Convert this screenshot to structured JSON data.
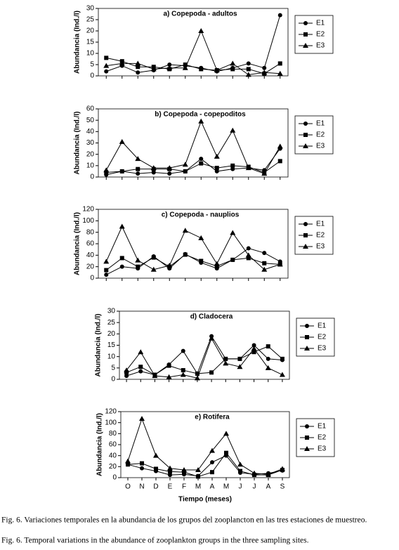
{
  "chart_data": [
    {
      "type": "line",
      "title": "a) Copepoda - adultos",
      "y_label": "Abundancia (Ind./l)",
      "ylim": [
        0,
        30
      ],
      "yticks": [
        0,
        5,
        10,
        15,
        20,
        25,
        30
      ],
      "series": [
        {
          "name": "E1",
          "color": "#000000",
          "marker": "circle",
          "values": [
            2,
            4.5,
            1.5,
            2.5,
            5,
            4.5,
            3.5,
            2,
            3.5,
            5.5,
            3.5,
            27
          ]
        },
        {
          "name": "E2",
          "color": "#000000",
          "marker": "square",
          "values": [
            8,
            6.5,
            4,
            4,
            3,
            5,
            3,
            2.5,
            3,
            3,
            1,
            5.5
          ]
        },
        {
          "name": "E3",
          "color": "#000000",
          "marker": "triangle",
          "values": [
            4.5,
            5.5,
            5.5,
            3,
            3.5,
            3.5,
            20,
            2.5,
            5.5,
            0.5,
            1.5,
            1
          ]
        }
      ]
    },
    {
      "type": "line",
      "title": "b) Copepoda - copepoditos",
      "y_label": "Abundancia (Ind./l)",
      "ylim": [
        0,
        60
      ],
      "yticks": [
        0,
        10,
        20,
        30,
        40,
        50,
        60
      ],
      "series": [
        {
          "name": "E1",
          "color": "#000000",
          "marker": "circle",
          "values": [
            2,
            5,
            3,
            4,
            3,
            5,
            16,
            5,
            7,
            8,
            6,
            25
          ]
        },
        {
          "name": "E2",
          "color": "#000000",
          "marker": "square",
          "values": [
            4,
            5,
            7,
            7,
            7,
            5,
            12,
            8,
            10,
            9,
            4,
            14
          ]
        },
        {
          "name": "E3",
          "color": "#000000",
          "marker": "triangle",
          "values": [
            6,
            31,
            16,
            8,
            8,
            11,
            49,
            18,
            41,
            8,
            3,
            27
          ]
        }
      ]
    },
    {
      "type": "line",
      "title": "c) Copepoda - nauplios",
      "y_label": "Abundancia (Ind./l)",
      "ylim": [
        0,
        120
      ],
      "yticks": [
        0,
        20,
        40,
        60,
        80,
        100,
        120
      ],
      "series": [
        {
          "name": "E1",
          "color": "#000000",
          "marker": "circle",
          "values": [
            6,
            20,
            17,
            38,
            17,
            42,
            27,
            17,
            32,
            52,
            44,
            29
          ]
        },
        {
          "name": "E2",
          "color": "#000000",
          "marker": "square",
          "values": [
            14,
            35,
            20,
            36,
            20,
            41,
            30,
            21,
            32,
            35,
            26,
            24
          ]
        },
        {
          "name": "E3",
          "color": "#000000",
          "marker": "triangle",
          "values": [
            29,
            90,
            31,
            15,
            22,
            83,
            70,
            25,
            79,
            40,
            15,
            24
          ]
        }
      ]
    },
    {
      "type": "line",
      "title": "d) Cladocera",
      "y_label": "Abundancia (Ind./l)",
      "ylim": [
        0,
        30
      ],
      "yticks": [
        0,
        5,
        10,
        15,
        20,
        25,
        30
      ],
      "series": [
        {
          "name": "E1",
          "color": "#000000",
          "marker": "circle",
          "values": [
            1.5,
            3.5,
            2,
            6.5,
            12.5,
            2.5,
            19,
            9,
            9,
            15,
            9,
            8.5
          ]
        },
        {
          "name": "E2",
          "color": "#000000",
          "marker": "square",
          "values": [
            3,
            5.5,
            2,
            6,
            4,
            2.5,
            3,
            9,
            9,
            12,
            14.5,
            9
          ]
        },
        {
          "name": "E3",
          "color": "#000000",
          "marker": "triangle",
          "values": [
            4,
            12,
            1.5,
            1,
            2,
            0.5,
            18,
            7,
            5.5,
            13.5,
            5,
            2
          ]
        }
      ]
    },
    {
      "type": "line",
      "title": "e) Rotifera",
      "y_label": "Abundancia (Ind./l)",
      "x_label": "Tiempo (meses)",
      "categories": [
        "O",
        "N",
        "D",
        "E",
        "F",
        "M",
        "A",
        "M",
        "J",
        "J",
        "A",
        "S"
      ],
      "ylim": [
        0,
        120
      ],
      "yticks": [
        0,
        20,
        40,
        60,
        80,
        100,
        120
      ],
      "series": [
        {
          "name": "E1",
          "color": "#000000",
          "marker": "circle",
          "values": [
            24,
            17,
            12,
            5,
            6,
            3,
            28,
            40,
            9,
            6,
            8,
            13
          ]
        },
        {
          "name": "E2",
          "color": "#000000",
          "marker": "square",
          "values": [
            24,
            26,
            16,
            11,
            10,
            2,
            10,
            45,
            12,
            5,
            5,
            14
          ]
        },
        {
          "name": "E3",
          "color": "#000000",
          "marker": "triangle",
          "values": [
            30,
            107,
            40,
            17,
            14,
            14,
            49,
            80,
            24,
            8,
            6,
            16
          ]
        }
      ]
    }
  ],
  "captions": [
    "Fig. 6. Variaciones temporales en la abundancia de los grupos del zooplancton en las tres estaciones de muestreo.",
    "Fig. 6. Temporal variations in the abundance of zooplankton groups in the three sampling sites."
  ]
}
